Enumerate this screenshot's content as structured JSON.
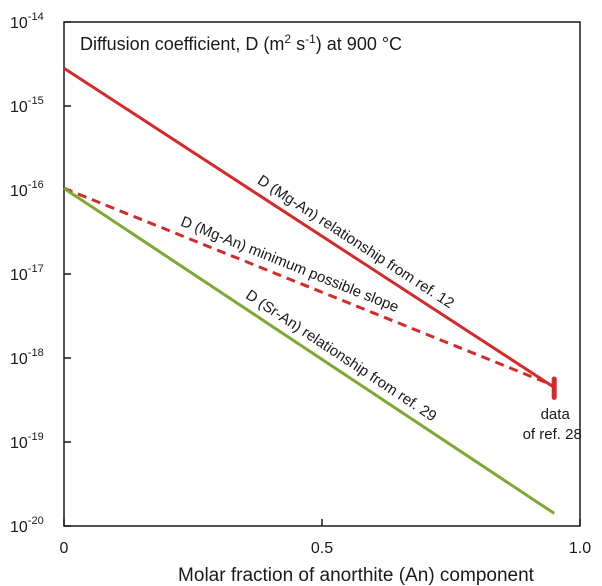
{
  "chart_data": {
    "type": "line",
    "title": {
      "prefix": "Diffusion coefficient, D (m",
      "sup1": "2",
      "mid": " s",
      "sup2": "-1",
      "suffix": ") at 900 °C"
    },
    "xlabel": "Molar fraction of anorthite (An)  component",
    "xlim": [
      0,
      1
    ],
    "ylim_log10": [
      -20,
      -14
    ],
    "y_scale": "log",
    "x_ticks": [
      {
        "value": 0,
        "label": "0"
      },
      {
        "value": 0.5,
        "label": "0.5"
      },
      {
        "value": 1,
        "label": "1.0"
      }
    ],
    "y_ticks": [
      {
        "exp": -14,
        "base": "10",
        "exp_label": "-14"
      },
      {
        "exp": -15,
        "base": "10",
        "exp_label": "-15"
      },
      {
        "exp": -16,
        "base": "10",
        "exp_label": "-16"
      },
      {
        "exp": -17,
        "base": "10",
        "exp_label": "-17"
      },
      {
        "exp": -18,
        "base": "10",
        "exp_label": "-18"
      },
      {
        "exp": -19,
        "base": "10",
        "exp_label": "-19"
      },
      {
        "exp": -20,
        "base": "10",
        "exp_label": "-20"
      }
    ],
    "series": [
      {
        "id": "mg-an-ref12",
        "label": "D (Mg-An) relationship from ref. 12",
        "color": "#d42a2a",
        "dash": "solid",
        "x": [
          0,
          0.95
        ],
        "log10_y": [
          -14.55,
          -18.35
        ]
      },
      {
        "id": "mg-an-min",
        "label": "D (Mg-An) minimum possible slope",
        "color": "#d42a2a",
        "dash": "dashed",
        "x": [
          0,
          0.95
        ],
        "log10_y": [
          -15.98,
          -18.33
        ]
      },
      {
        "id": "sr-an-ref29",
        "label": "D (Sr-An) relationship from ref. 29",
        "color": "#7fa832",
        "dash": "solid",
        "x": [
          0,
          0.95
        ],
        "log10_y": [
          -15.98,
          -19.85
        ]
      }
    ],
    "data_point": {
      "x": 0.95,
      "log10_y_range": [
        -18.47,
        -18.25
      ],
      "label_line1": "data",
      "label_line2": "of ref. 28",
      "color": "#d42a2a"
    },
    "grid": false,
    "legend": "none"
  }
}
